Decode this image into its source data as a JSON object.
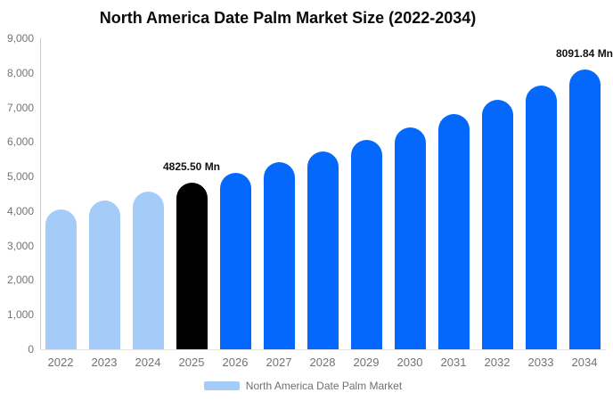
{
  "title": "North America Date Palm Market Size (2022-2034)",
  "chart_data": {
    "type": "bar",
    "title": "North America Date Palm Market Size (2022-2034)",
    "categories": [
      "2022",
      "2023",
      "2024",
      "2025",
      "2026",
      "2027",
      "2028",
      "2029",
      "2030",
      "2031",
      "2032",
      "2033",
      "2034"
    ],
    "series": [
      {
        "name": "North America Date Palm Market",
        "values": [
          4060,
          4300,
          4555,
          4825.5,
          5111,
          5413,
          5733,
          6071,
          6430,
          6810,
          7213,
          7639,
          8091.84
        ]
      }
    ],
    "unit": "Mn",
    "ylim": [
      0,
      9000
    ],
    "ytick_interval": 1000,
    "ytick_labels": [
      "0",
      "1,000",
      "2,000",
      "3,000",
      "4,000",
      "5,000",
      "6,000",
      "7,000",
      "8,000",
      "9,000"
    ],
    "grid": false,
    "legend_position": "bottom",
    "palette": {
      "historical": "#A5CCF8",
      "base_year": "#000000",
      "forecast": "#0568FC"
    },
    "bar_color_roles": [
      "historical",
      "historical",
      "historical",
      "base_year",
      "forecast",
      "forecast",
      "forecast",
      "forecast",
      "forecast",
      "forecast",
      "forecast",
      "forecast",
      "forecast"
    ],
    "annotations": [
      {
        "category": "2025",
        "text": "4825.50 Mn"
      },
      {
        "category": "2034",
        "text": "8091.84 Mn"
      }
    ],
    "legend": {
      "label": "North America Date Palm Market",
      "swatch_color": "#A5CCF8"
    }
  }
}
